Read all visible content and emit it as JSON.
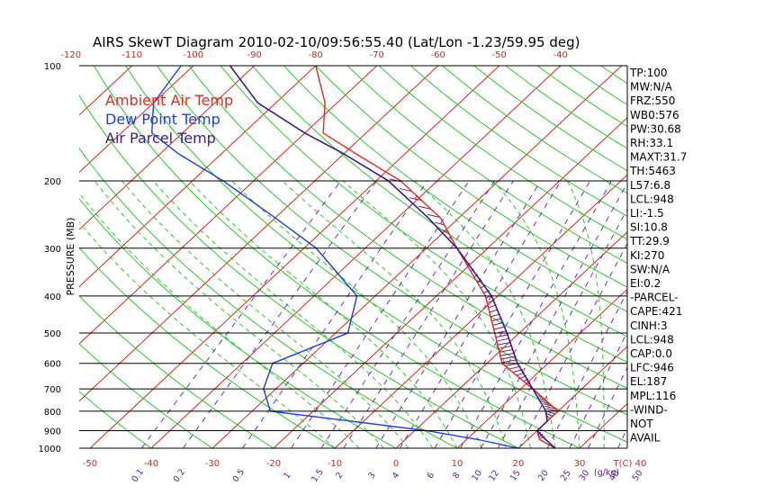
{
  "chart_data": {
    "type": "skewt",
    "title": "AIRS SkewT Diagram 2010-02-10/09:56:55.40 (Lat/Lon -1.23/59.95 deg)",
    "ylabel": "PRESSURE (MB)",
    "xlabel_unit": "T(C)",
    "mixing_unit": "(g/kg)",
    "pressure_ticks": [
      100,
      200,
      300,
      400,
      500,
      600,
      700,
      800,
      900,
      1000
    ],
    "top_temp_ticks": [
      -120,
      -110,
      -100,
      -90,
      -80,
      -70,
      -60,
      -50,
      -40
    ],
    "bottom_temp_ticks": [
      -50,
      -40,
      -30,
      -20,
      -10,
      0,
      10,
      20,
      30,
      40
    ],
    "mixing_ratios": [
      "0.1",
      "0.2",
      "0.5",
      "1",
      "1.5",
      "2",
      "3",
      "4",
      "6",
      "8",
      "10",
      "12",
      "15",
      "20",
      "25",
      "30",
      "40",
      "50"
    ],
    "legend": [
      {
        "label": "Ambient Air Temp",
        "color": "#e8271d"
      },
      {
        "label": "Dew Point Temp",
        "color": "#1a3ee8"
      },
      {
        "label": "Air Parcel Temp",
        "color": "#3b1d86"
      }
    ],
    "temperature": [
      [
        1000,
        26
      ],
      [
        950,
        22
      ],
      [
        900,
        20
      ],
      [
        850,
        20
      ],
      [
        800,
        20
      ],
      [
        700,
        12
      ],
      [
        600,
        2.5
      ],
      [
        500,
        -4
      ],
      [
        400,
        -12
      ],
      [
        300,
        -25
      ],
      [
        250,
        -33
      ],
      [
        200,
        -46
      ],
      [
        170,
        -58
      ],
      [
        150,
        -67
      ],
      [
        125,
        -72
      ],
      [
        100,
        -80
      ]
    ],
    "dewpoint": [
      [
        1000,
        20
      ],
      [
        950,
        12
      ],
      [
        900,
        2
      ],
      [
        850,
        -12
      ],
      [
        800,
        -27
      ],
      [
        700,
        -32
      ],
      [
        600,
        -35
      ],
      [
        500,
        -28
      ],
      [
        400,
        -33
      ],
      [
        300,
        -48
      ],
      [
        250,
        -60
      ],
      [
        200,
        -75
      ],
      [
        170,
        -87
      ],
      [
        150,
        -95
      ],
      [
        125,
        -100
      ],
      [
        100,
        -102
      ]
    ],
    "parcel": [
      [
        1000,
        26
      ],
      [
        950,
        23
      ],
      [
        900,
        20
      ],
      [
        850,
        20
      ],
      [
        800,
        18
      ],
      [
        700,
        12
      ],
      [
        600,
        5
      ],
      [
        500,
        -2
      ],
      [
        400,
        -11
      ],
      [
        300,
        -25
      ],
      [
        250,
        -35
      ],
      [
        200,
        -48
      ],
      [
        170,
        -60
      ],
      [
        150,
        -70
      ],
      [
        125,
        -83
      ],
      [
        100,
        -94
      ]
    ],
    "indices": [
      "TP:100",
      "MW:N/A",
      "FRZ:550",
      "WB0:576",
      "PW:30.68",
      "RH:33.1",
      "MAXT:31.7",
      "TH:5463",
      "L57:6.8",
      "LCL:948",
      "LI:-1.5",
      "SI:10.8",
      "TT:29.9",
      "KI:270",
      "SW:N/A",
      "EI:0.2",
      "-PARCEL-",
      "CAPE:421",
      "CINH:3",
      "LCL:948",
      "CAP:0.0",
      "LFC:946",
      "EL:187",
      "MPL:116",
      "-WIND-",
      "NOT",
      "AVAIL"
    ],
    "colors": {
      "temperature": "#e8271d",
      "dewpoint": "#1a3ee8",
      "parcel": "#3b1d86",
      "isotherm": "#d8231a",
      "dry_adiabat": "#27c927",
      "moist_adiabat": "#27c927",
      "mixing_ratio": "#6a2fb0",
      "cape_hatch": "#7a1a6b",
      "axis": "#000000"
    }
  }
}
